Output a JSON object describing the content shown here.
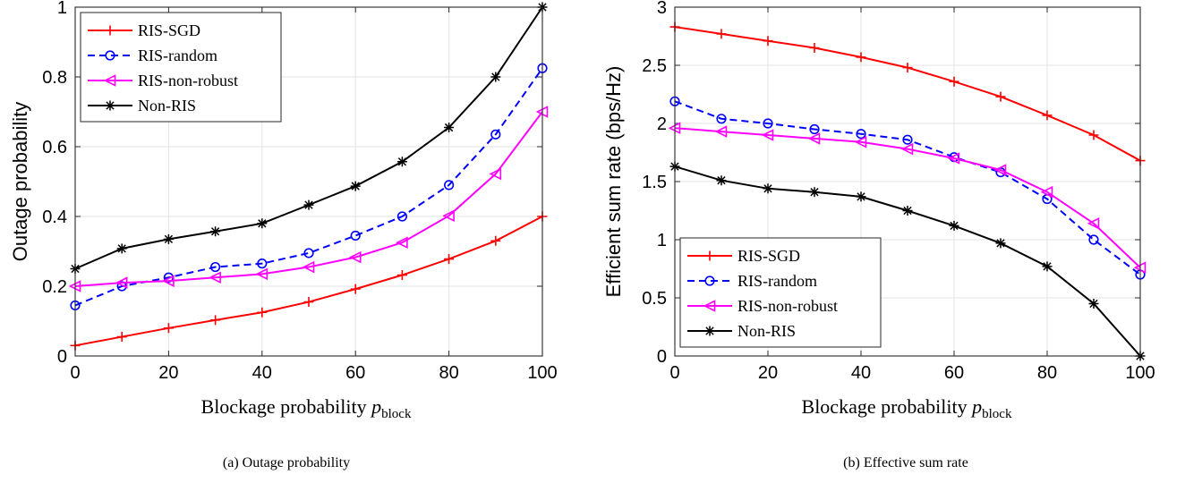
{
  "chart_data": [
    {
      "type": "line",
      "caption": "(a)  Outage probability",
      "xlabel_main": "Blockage probability ",
      "xlabel_var": "p",
      "xlabel_sub": "block",
      "ylabel": "Outage probability",
      "x": [
        0,
        10,
        20,
        30,
        40,
        50,
        60,
        70,
        80,
        90,
        100
      ],
      "xlim": [
        0,
        100
      ],
      "ylim": [
        0,
        1
      ],
      "xticks": [
        "0",
        "20",
        "40",
        "60",
        "80",
        "100"
      ],
      "yticks": [
        "0",
        "0.2",
        "0.4",
        "0.6",
        "0.8",
        "1"
      ],
      "grid": true,
      "legend_position": "top-left",
      "series": [
        {
          "name": "RIS-SGD",
          "color": "#ff0000",
          "dash": "solid",
          "marker": "plus",
          "values": [
            0.03,
            0.055,
            0.08,
            0.103,
            0.125,
            0.155,
            0.192,
            0.232,
            0.278,
            0.33,
            0.4
          ]
        },
        {
          "name": "RIS-random",
          "color": "#0000ff",
          "dash": "dashed",
          "marker": "circle",
          "values": [
            0.145,
            0.2,
            0.225,
            0.255,
            0.265,
            0.295,
            0.345,
            0.4,
            0.49,
            0.635,
            0.825
          ]
        },
        {
          "name": "RIS-non-robust",
          "color": "#ff00ff",
          "dash": "solid",
          "marker": "triangle-left",
          "values": [
            0.2,
            0.21,
            0.215,
            0.225,
            0.235,
            0.255,
            0.283,
            0.325,
            0.402,
            0.522,
            0.7
          ]
        },
        {
          "name": "Non-RIS",
          "color": "#000000",
          "dash": "solid",
          "marker": "asterisk",
          "values": [
            0.25,
            0.308,
            0.335,
            0.357,
            0.38,
            0.433,
            0.487,
            0.557,
            0.655,
            0.8,
            1.0
          ]
        }
      ]
    },
    {
      "type": "line",
      "caption": "(b)  Effective sum rate",
      "xlabel_main": "Blockage probability ",
      "xlabel_var": "p",
      "xlabel_sub": "block",
      "ylabel": "Efficient sum rate (bps/Hz)",
      "x": [
        0,
        10,
        20,
        30,
        40,
        50,
        60,
        70,
        80,
        90,
        100
      ],
      "xlim": [
        0,
        100
      ],
      "ylim": [
        0,
        3
      ],
      "xticks": [
        "0",
        "20",
        "40",
        "60",
        "80",
        "100"
      ],
      "yticks": [
        "0",
        "0.5",
        "1",
        "1.5",
        "2",
        "2.5",
        "3"
      ],
      "grid": true,
      "legend_position": "bottom-left",
      "series": [
        {
          "name": "RIS-SGD",
          "color": "#ff0000",
          "dash": "solid",
          "marker": "plus",
          "values": [
            2.83,
            2.77,
            2.71,
            2.65,
            2.57,
            2.48,
            2.36,
            2.23,
            2.07,
            1.9,
            1.68
          ]
        },
        {
          "name": "RIS-random",
          "color": "#0000ff",
          "dash": "dashed",
          "marker": "circle",
          "values": [
            2.19,
            2.04,
            2.0,
            1.95,
            1.91,
            1.86,
            1.71,
            1.58,
            1.35,
            1.0,
            0.7
          ]
        },
        {
          "name": "RIS-non-robust",
          "color": "#ff00ff",
          "dash": "solid",
          "marker": "triangle-left",
          "values": [
            1.96,
            1.93,
            1.9,
            1.87,
            1.84,
            1.78,
            1.7,
            1.6,
            1.41,
            1.14,
            0.76
          ]
        },
        {
          "name": "Non-RIS",
          "color": "#000000",
          "dash": "solid",
          "marker": "asterisk",
          "values": [
            1.63,
            1.51,
            1.44,
            1.41,
            1.37,
            1.25,
            1.12,
            0.97,
            0.77,
            0.45,
            0.0
          ]
        }
      ]
    }
  ]
}
